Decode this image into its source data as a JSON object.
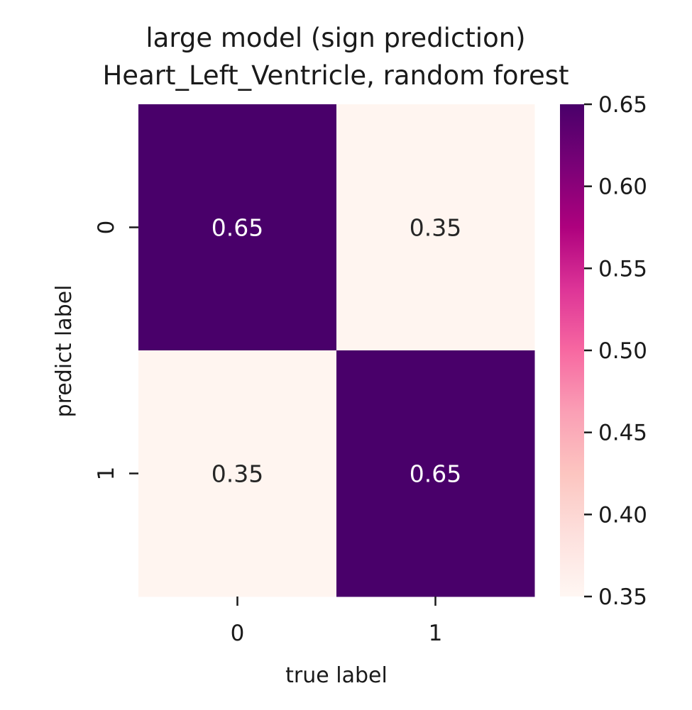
{
  "chart_data": {
    "type": "heatmap",
    "title": [
      "large model (sign prediction)",
      "Heart_Left_Ventricle, random forest"
    ],
    "xlabel": "true label",
    "ylabel": "predict label",
    "x_categories": [
      "0",
      "1"
    ],
    "y_categories": [
      "0",
      "1"
    ],
    "values": [
      [
        0.65,
        0.35
      ],
      [
        0.35,
        0.65
      ]
    ],
    "cell_labels": [
      [
        "0.65",
        "0.35"
      ],
      [
        "0.35",
        "0.65"
      ]
    ],
    "colormap": "RdPu",
    "colorbar": {
      "range": [
        0.35,
        0.65
      ],
      "ticks": [
        0.35,
        0.4,
        0.45,
        0.5,
        0.55,
        0.6,
        0.65
      ],
      "tick_labels": [
        "0.35",
        "0.40",
        "0.45",
        "0.50",
        "0.55",
        "0.60",
        "0.65"
      ]
    },
    "colors": {
      "high": "#49006a",
      "low": "#fff5f0",
      "dark_text": "#262626",
      "light_text": "#ffffff"
    }
  }
}
